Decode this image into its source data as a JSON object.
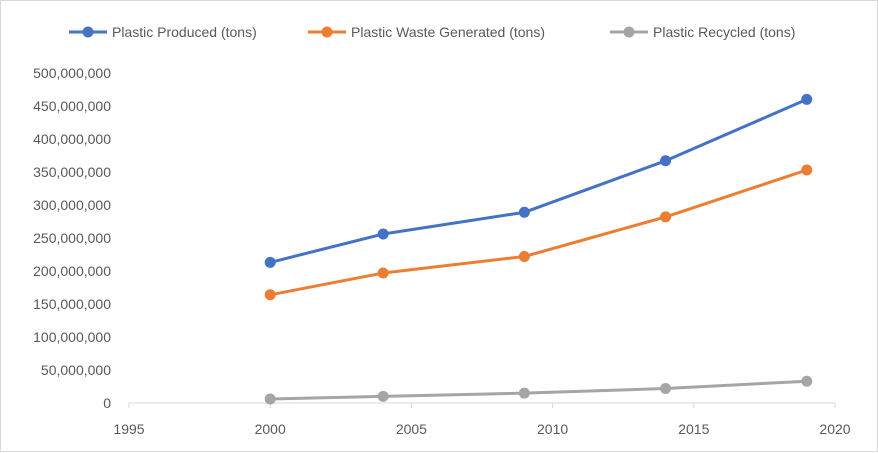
{
  "chart_data": {
    "type": "line",
    "title": "",
    "xlabel": "",
    "ylabel": "",
    "xlim": [
      1995,
      2020
    ],
    "ylim": [
      0,
      500000000
    ],
    "x_ticks": [
      1995,
      2000,
      2005,
      2010,
      2015,
      2020
    ],
    "x_tick_labels": [
      "1995",
      "2000",
      "2005",
      "2010",
      "2015",
      "2020"
    ],
    "y_ticks": [
      0,
      50000000,
      100000000,
      150000000,
      200000000,
      250000000,
      300000000,
      350000000,
      400000000,
      450000000,
      500000000
    ],
    "y_tick_labels": [
      "0",
      "50,000,000",
      "100,000,000",
      "150,000,000",
      "200,000,000",
      "250,000,000",
      "300,000,000",
      "350,000,000",
      "400,000,000",
      "450,000,000",
      "500,000,000"
    ],
    "grid": false,
    "legend_position": "top",
    "x": [
      2000,
      2004,
      2009,
      2014,
      2019
    ],
    "series": [
      {
        "name": "Plastic Produced (tons)",
        "color": "#4472c4",
        "values": [
          213000000,
          256000000,
          289000000,
          367000000,
          460000000
        ]
      },
      {
        "name": "Plastic Waste Generated (tons)",
        "color": "#ed7d31",
        "values": [
          164000000,
          197000000,
          222000000,
          282000000,
          353000000
        ]
      },
      {
        "name": "Plastic Recycled (tons)",
        "color": "#a5a5a5",
        "values": [
          6000000,
          10000000,
          15000000,
          22000000,
          33000000
        ]
      }
    ]
  }
}
